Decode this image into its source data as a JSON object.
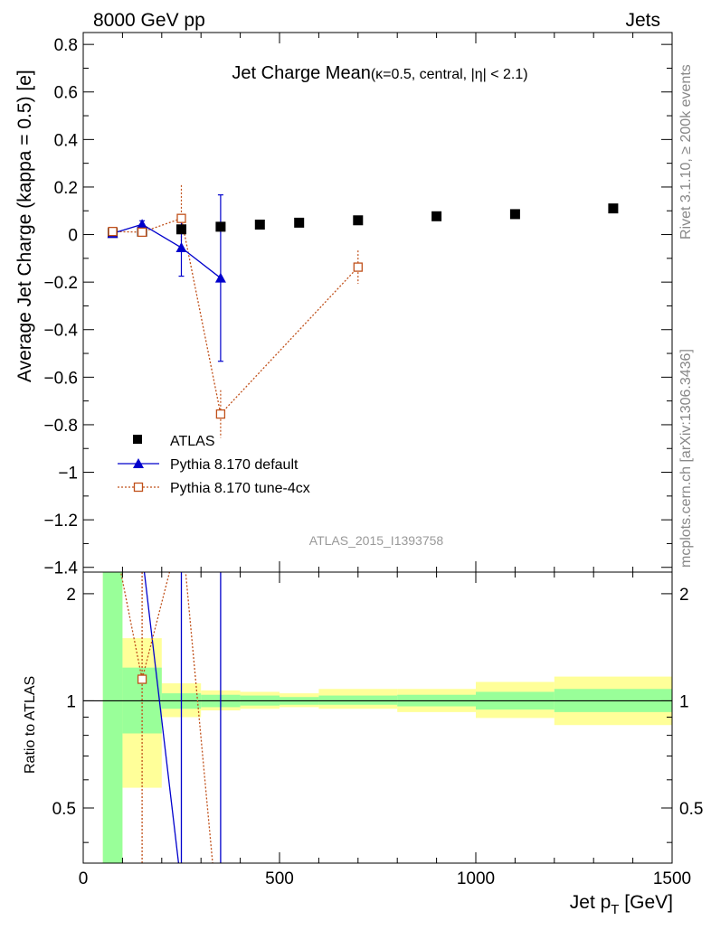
{
  "header": {
    "energy_label": "8000 GeV pp",
    "process_label": "Jets"
  },
  "side_text": {
    "rivet": "Rivet 3.1.10, ≥ 200k events",
    "source": "mcplots.cern.ch [arXiv:1306.3436]"
  },
  "chart_data": [
    {
      "type": "scatter",
      "title_main": "Jet Charge Mean",
      "title_sub": "(κ=0.5, central, |η| < 2.1)",
      "ylabel": "Average Jet Charge (kappa = 0.5) [e]",
      "analysis_id": "ATLAS_2015_I1393758",
      "xlim": [
        0,
        1500
      ],
      "ylim": [
        -1.42,
        0.85
      ],
      "yticks": [
        0.8,
        0.6,
        0.4,
        0.2,
        0,
        -0.2,
        -0.4,
        -0.6,
        -0.8,
        -1,
        -1.2,
        -1.4
      ],
      "ytick_labels": [
        "0.8",
        "0.6",
        "0.4",
        "0.2",
        "0",
        "−0.2",
        "−0.4",
        "−0.6",
        "−0.8",
        "−1",
        "−1.2",
        "−1.4"
      ],
      "legend_position": "lower-left",
      "series": [
        {
          "name": "ATLAS",
          "color": "#000000",
          "marker": "filled-square",
          "x": [
            75,
            150,
            250,
            350,
            450,
            550,
            700,
            900,
            1100,
            1350
          ],
          "y": [
            0.007,
            0.012,
            0.022,
            0.033,
            0.042,
            0.05,
            0.06,
            0.077,
            0.086,
            0.11
          ]
        },
        {
          "name": "Pythia 8.170 default",
          "color": "#0000cc",
          "marker": "filled-triangle",
          "line": "solid",
          "x": [
            75,
            150,
            250,
            350
          ],
          "y": [
            0.005,
            0.043,
            -0.055,
            -0.183
          ],
          "yerr_low": [
            0.01,
            0.015,
            0.12,
            0.35
          ],
          "yerr_high": [
            0.01,
            0.015,
            0.12,
            0.35
          ]
        },
        {
          "name": "Pythia 8.170 tune-4cx",
          "color": "#c0501a",
          "marker": "open-square",
          "line": "dotted",
          "x": [
            75,
            150,
            250,
            350,
            700
          ],
          "y": [
            0.013,
            0.01,
            0.068,
            -0.755,
            -0.137
          ],
          "yerr_low": [
            0.01,
            0.015,
            0.13,
            0.1,
            0.07
          ],
          "yerr_high": [
            0.01,
            0.015,
            0.14,
            0.1,
            0.07
          ]
        }
      ]
    },
    {
      "type": "area",
      "ylabel": "Ratio to ATLAS",
      "xlabel": "Jet p_T [GeV]",
      "xlabel_main": "Jet p",
      "xlabel_sub": "T",
      "xlabel_unit": " [GeV]",
      "xlim": [
        0,
        1500
      ],
      "ylim": [
        0.35,
        2.3
      ],
      "xticks": [
        0,
        500,
        1000,
        1500
      ],
      "xtick_labels": [
        "0",
        "500",
        "1000",
        "1500"
      ],
      "yticks": [
        0.5,
        1,
        2
      ],
      "ytick_labels": [
        "0.5",
        "1",
        "2"
      ],
      "reference_line": 1,
      "bins": [
        {
          "xlo": 50,
          "xhi": 100,
          "stat_lo": 0.2,
          "stat_hi": 3.0,
          "tot_lo": 0.2,
          "tot_hi": 3.0
        },
        {
          "xlo": 100,
          "xhi": 200,
          "stat_lo": 0.81,
          "stat_hi": 1.24,
          "tot_lo": 0.57,
          "tot_hi": 1.5
        },
        {
          "xlo": 200,
          "xhi": 300,
          "stat_lo": 0.95,
          "stat_hi": 1.05,
          "tot_lo": 0.9,
          "tot_hi": 1.12
        },
        {
          "xlo": 300,
          "xhi": 400,
          "stat_lo": 0.96,
          "stat_hi": 1.04,
          "tot_lo": 0.94,
          "tot_hi": 1.07
        },
        {
          "xlo": 400,
          "xhi": 500,
          "stat_lo": 0.97,
          "stat_hi": 1.035,
          "tot_lo": 0.95,
          "tot_hi": 1.06
        },
        {
          "xlo": 500,
          "xhi": 600,
          "stat_lo": 0.975,
          "stat_hi": 1.025,
          "tot_lo": 0.96,
          "tot_hi": 1.05
        },
        {
          "xlo": 600,
          "xhi": 800,
          "stat_lo": 0.975,
          "stat_hi": 1.035,
          "tot_lo": 0.95,
          "tot_hi": 1.08
        },
        {
          "xlo": 800,
          "xhi": 1000,
          "stat_lo": 0.965,
          "stat_hi": 1.04,
          "tot_lo": 0.93,
          "tot_hi": 1.08
        },
        {
          "xlo": 1000,
          "xhi": 1200,
          "stat_lo": 0.945,
          "stat_hi": 1.06,
          "tot_lo": 0.895,
          "tot_hi": 1.13
        },
        {
          "xlo": 1200,
          "xhi": 1500,
          "stat_lo": 0.93,
          "stat_hi": 1.08,
          "tot_lo": 0.855,
          "tot_hi": 1.17
        }
      ],
      "colors": {
        "stat": "#99ff99",
        "total": "#ffff99"
      },
      "series": [
        {
          "name": "Pythia 8.170 default",
          "color": "#0000cc",
          "line": "solid",
          "x": [
            150,
            250
          ],
          "y": [
            2.6,
            0.3
          ]
        },
        {
          "name": "Pythia 8.170 tune-4cx",
          "color": "#c0501a",
          "line": "dotted",
          "marker": "open-square",
          "marker_x": [
            150
          ],
          "marker_y": [
            1.15
          ],
          "x": [
            75,
            150,
            250,
            350
          ],
          "y": [
            3.0,
            1.15,
            3.1,
            0.2
          ]
        }
      ],
      "vertical_error_lines": [
        {
          "x": 150,
          "color": "#c0501a",
          "dotted": true
        },
        {
          "x": 250,
          "color": "#0000cc",
          "dotted": false
        },
        {
          "x": 350,
          "color": "#0000cc",
          "dotted": false
        }
      ]
    }
  ]
}
